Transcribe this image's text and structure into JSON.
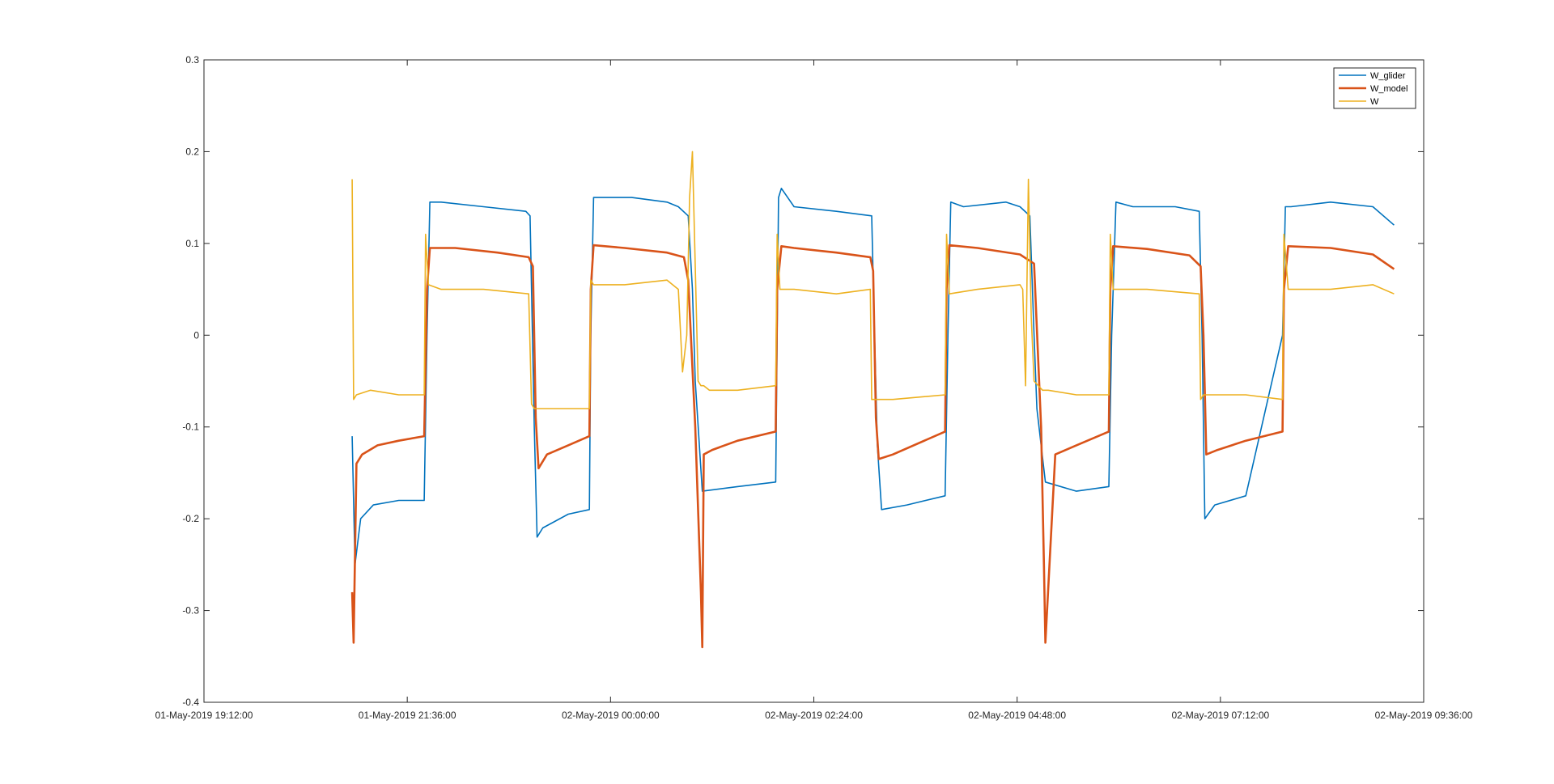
{
  "chart_data": {
    "type": "line",
    "title": "",
    "xlabel": "",
    "ylabel": "",
    "x_tick_labels": [
      "01-May-2019 19:12:00",
      "01-May-2019 21:36:00",
      "02-May-2019 00:00:00",
      "02-May-2019 02:24:00",
      "02-May-2019 04:48:00",
      "02-May-2019 07:12:00",
      "02-May-2019 09:36:00"
    ],
    "xlim": [
      "01-May-2019 19:12:00",
      "02-May-2019 09:36:00"
    ],
    "ylim": [
      -0.4,
      0.3
    ],
    "y_ticks": [
      -0.4,
      -0.3,
      -0.2,
      -0.1,
      0,
      0.1,
      0.2,
      0.3
    ],
    "y_tick_labels": [
      "-0.4",
      "-0.3",
      "-0.2",
      "-0.1",
      "0",
      "0.1",
      "0.2",
      "0.3"
    ],
    "grid": false,
    "legend_position": "top-right",
    "series": [
      {
        "name": "W_glider",
        "color": "#0072BD",
        "x": [
          "01-May-2019 20:57:00",
          "01-May-2019 20:59:00",
          "01-May-2019 21:03:00",
          "01-May-2019 21:12:00",
          "01-May-2019 21:30:00",
          "01-May-2019 21:48:00",
          "01-May-2019 21:50:00",
          "01-May-2019 21:52:00",
          "01-May-2019 22:00:00",
          "01-May-2019 22:30:00",
          "01-May-2019 23:00:00",
          "01-May-2019 23:03:00",
          "01-May-2019 23:06:00",
          "01-May-2019 23:08:00",
          "01-May-2019 23:12:00",
          "01-May-2019 23:30:00",
          "01-May-2019 23:45:00",
          "01-May-2019 23:46:00",
          "01-May-2019 23:48:00",
          "01-May-2019 23:55:00",
          "02-May-2019 00:15:00",
          "02-May-2019 00:40:00",
          "02-May-2019 00:48:00",
          "02-May-2019 00:55:00",
          "02-May-2019 00:58:00",
          "02-May-2019 01:00:00",
          "02-May-2019 01:05:00",
          "02-May-2019 01:30:00",
          "02-May-2019 01:57:00",
          "02-May-2019 01:59:00",
          "02-May-2019 02:01:00",
          "02-May-2019 02:10:00",
          "02-May-2019 02:40:00",
          "02-May-2019 03:05:00",
          "02-May-2019 03:07:00",
          "02-May-2019 03:09:00",
          "02-May-2019 03:12:00",
          "02-May-2019 03:30:00",
          "02-May-2019 03:57:00",
          "02-May-2019 03:59:00",
          "02-May-2019 04:01:00",
          "02-May-2019 04:10:00",
          "02-May-2019 04:40:00",
          "02-May-2019 04:50:00",
          "02-May-2019 04:57:00",
          "02-May-2019 05:00:00",
          "02-May-2019 05:02:00",
          "02-May-2019 05:08:00",
          "02-May-2019 05:30:00",
          "02-May-2019 05:53:00",
          "02-May-2019 05:55:00",
          "02-May-2019 05:58:00",
          "02-May-2019 06:10:00",
          "02-May-2019 06:40:00",
          "02-May-2019 06:57:00",
          "02-May-2019 06:59:00",
          "02-May-2019 07:01:00",
          "02-May-2019 07:08:00",
          "02-May-2019 07:30:00",
          "02-May-2019 07:56:00",
          "02-May-2019 07:58:00",
          "02-May-2019 08:02:00",
          "02-May-2019 08:30:00",
          "02-May-2019 09:00:00",
          "02-May-2019 09:15:00"
        ],
        "y": [
          -0.11,
          -0.25,
          -0.2,
          -0.185,
          -0.18,
          -0.18,
          0.0,
          0.145,
          0.145,
          0.14,
          0.135,
          0.13,
          -0.1,
          -0.22,
          -0.21,
          -0.195,
          -0.19,
          0.0,
          0.15,
          0.15,
          0.15,
          0.145,
          0.14,
          0.13,
          0.05,
          -0.05,
          -0.17,
          -0.165,
          -0.16,
          0.15,
          0.16,
          0.14,
          0.135,
          0.13,
          0.0,
          -0.12,
          -0.19,
          -0.185,
          -0.175,
          0.0,
          0.145,
          0.14,
          0.145,
          0.14,
          0.13,
          0.0,
          -0.08,
          -0.16,
          -0.17,
          -0.165,
          0.0,
          0.145,
          0.14,
          0.14,
          0.135,
          0.0,
          -0.2,
          -0.185,
          -0.175,
          0.0,
          0.14,
          0.14,
          0.145,
          0.14,
          0.12
        ]
      },
      {
        "name": "W_model",
        "color": "#D95319",
        "x": [
          "01-May-2019 20:57:00",
          "01-May-2019 20:58:00",
          "01-May-2019 21:00:00",
          "01-May-2019 21:04:00",
          "01-May-2019 21:15:00",
          "01-May-2019 21:30:00",
          "01-May-2019 21:48:00",
          "01-May-2019 21:50:00",
          "01-May-2019 21:52:00",
          "01-May-2019 22:10:00",
          "01-May-2019 22:40:00",
          "01-May-2019 23:02:00",
          "01-May-2019 23:05:00",
          "01-May-2019 23:07:00",
          "01-May-2019 23:09:00",
          "01-May-2019 23:15:00",
          "01-May-2019 23:30:00",
          "01-May-2019 23:45:00",
          "01-May-2019 23:46:00",
          "01-May-2019 23:48:00",
          "02-May-2019 00:10:00",
          "02-May-2019 00:40:00",
          "02-May-2019 00:52:00",
          "02-May-2019 00:55:00",
          "02-May-2019 01:00:00",
          "02-May-2019 01:04:00",
          "02-May-2019 01:05:00",
          "02-May-2019 01:06:00",
          "02-May-2019 01:12:00",
          "02-May-2019 01:30:00",
          "02-May-2019 01:57:00",
          "02-May-2019 01:58:00",
          "02-May-2019 02:01:00",
          "02-May-2019 02:10:00",
          "02-May-2019 02:40:00",
          "02-May-2019 03:04:00",
          "02-May-2019 03:06:00",
          "02-May-2019 03:08:00",
          "02-May-2019 03:10:00",
          "02-May-2019 03:20:00",
          "02-May-2019 03:57:00",
          "02-May-2019 03:58:00",
          "02-May-2019 04:00:00",
          "02-May-2019 04:20:00",
          "02-May-2019 04:50:00",
          "02-May-2019 05:00:00",
          "02-May-2019 05:05:00",
          "02-May-2019 05:07:00",
          "02-May-2019 05:08:00",
          "02-May-2019 05:15:00",
          "02-May-2019 05:30:00",
          "02-May-2019 05:53:00",
          "02-May-2019 05:54:00",
          "02-May-2019 05:56:00",
          "02-May-2019 06:20:00",
          "02-May-2019 06:50:00",
          "02-May-2019 06:58:00",
          "02-May-2019 07:00:00",
          "02-May-2019 07:02:00",
          "02-May-2019 07:10:00",
          "02-May-2019 07:30:00",
          "02-May-2019 07:56:00",
          "02-May-2019 07:57:00",
          "02-May-2019 08:00:00",
          "02-May-2019 08:30:00",
          "02-May-2019 09:00:00",
          "02-May-2019 09:15:00"
        ],
        "y": [
          -0.28,
          -0.335,
          -0.14,
          -0.13,
          -0.12,
          -0.115,
          -0.11,
          0.05,
          0.095,
          0.095,
          0.09,
          0.085,
          0.075,
          -0.09,
          -0.145,
          -0.13,
          -0.12,
          -0.11,
          0.05,
          0.098,
          0.095,
          0.09,
          0.085,
          0.06,
          -0.1,
          -0.28,
          -0.34,
          -0.13,
          -0.125,
          -0.115,
          -0.105,
          0.05,
          0.097,
          0.095,
          0.09,
          0.085,
          0.07,
          -0.09,
          -0.135,
          -0.13,
          -0.105,
          0.05,
          0.098,
          0.095,
          0.088,
          0.078,
          -0.1,
          -0.25,
          -0.335,
          -0.13,
          -0.12,
          -0.105,
          0.05,
          0.097,
          0.094,
          0.087,
          0.075,
          0.0,
          -0.13,
          -0.125,
          -0.115,
          -0.105,
          0.05,
          0.097,
          0.095,
          0.088,
          0.072
        ]
      },
      {
        "name": "W",
        "color": "#EDB120",
        "x": [
          "01-May-2019 20:57:00",
          "01-May-2019 20:58:00",
          "01-May-2019 21:00:00",
          "01-May-2019 21:10:00",
          "01-May-2019 21:30:00",
          "01-May-2019 21:48:00",
          "01-May-2019 21:49:00",
          "01-May-2019 21:51:00",
          "01-May-2019 22:00:00",
          "01-May-2019 22:30:00",
          "01-May-2019 23:02:00",
          "01-May-2019 23:04:00",
          "01-May-2019 23:06:00",
          "01-May-2019 23:15:00",
          "01-May-2019 23:45:00",
          "01-May-2019 23:46:00",
          "01-May-2019 23:48:00",
          "02-May-2019 00:10:00",
          "02-May-2019 00:40:00",
          "02-May-2019 00:48:00",
          "02-May-2019 00:51:00",
          "02-May-2019 00:54:00",
          "02-May-2019 00:56:00",
          "02-May-2019 00:58:00",
          "02-May-2019 01:02:00",
          "02-May-2019 01:04:00",
          "02-May-2019 01:06:00",
          "02-May-2019 01:10:00",
          "02-May-2019 01:30:00",
          "02-May-2019 01:57:00",
          "02-May-2019 01:58:00",
          "02-May-2019 02:00:00",
          "02-May-2019 02:10:00",
          "02-May-2019 02:40:00",
          "02-May-2019 03:04:00",
          "02-May-2019 03:05:00",
          "02-May-2019 03:08:00",
          "02-May-2019 03:20:00",
          "02-May-2019 03:57:00",
          "02-May-2019 03:58:00",
          "02-May-2019 04:00:00",
          "02-May-2019 04:20:00",
          "02-May-2019 04:50:00",
          "02-May-2019 04:52:00",
          "02-May-2019 04:54:00",
          "02-May-2019 04:56:00",
          "02-May-2019 04:58:00",
          "02-May-2019 05:00:00",
          "02-May-2019 05:03:00",
          "02-May-2019 05:06:00",
          "02-May-2019 05:10:00",
          "02-May-2019 05:30:00",
          "02-May-2019 05:53:00",
          "02-May-2019 05:54:00",
          "02-May-2019 05:56:00",
          "02-May-2019 06:20:00",
          "02-May-2019 06:57:00",
          "02-May-2019 06:58:00",
          "02-May-2019 07:00:00",
          "02-May-2019 07:05:00",
          "02-May-2019 07:30:00",
          "02-May-2019 07:56:00",
          "02-May-2019 07:57:00",
          "02-May-2019 08:00:00",
          "02-May-2019 08:30:00",
          "02-May-2019 09:00:00",
          "02-May-2019 09:15:00"
        ],
        "y": [
          0.17,
          -0.07,
          -0.065,
          -0.06,
          -0.065,
          -0.065,
          0.11,
          0.055,
          0.05,
          0.05,
          0.045,
          -0.075,
          -0.08,
          -0.08,
          -0.08,
          0.06,
          0.055,
          0.055,
          0.06,
          0.05,
          -0.04,
          0.0,
          0.15,
          0.2,
          -0.05,
          -0.055,
          -0.055,
          -0.06,
          -0.06,
          -0.055,
          0.11,
          0.05,
          0.05,
          0.045,
          0.05,
          -0.07,
          -0.07,
          -0.07,
          -0.065,
          0.11,
          0.045,
          0.05,
          0.055,
          0.05,
          -0.055,
          0.17,
          0.02,
          -0.05,
          -0.055,
          -0.06,
          -0.06,
          -0.065,
          -0.065,
          0.11,
          0.05,
          0.05,
          0.045,
          -0.07,
          -0.065,
          -0.065,
          -0.065,
          -0.07,
          0.11,
          0.05,
          0.05,
          0.055,
          0.045
        ]
      }
    ]
  }
}
